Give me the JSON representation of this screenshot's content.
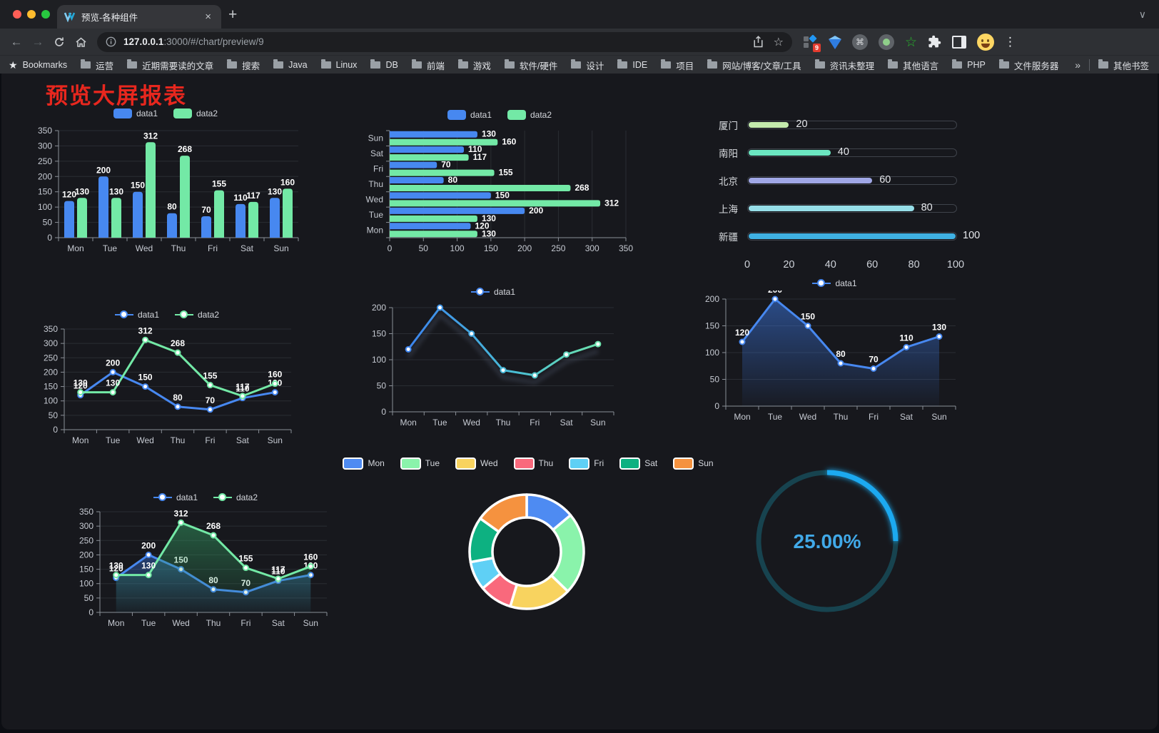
{
  "browser": {
    "tab": {
      "title": "预览-各种组件",
      "close": "×",
      "new_tab": "+"
    },
    "url": {
      "host": "127.0.0.1",
      "rest": ":3000/#/chart/preview/9"
    },
    "bookmarks_label": "Bookmarks",
    "bookmark_folders": [
      "运营",
      "近期需要读的文章",
      "搜索",
      "Java",
      "Linux",
      "DB",
      "前端",
      "游戏",
      "软件/硬件",
      "设计",
      "IDE",
      "项目",
      "网站/博客/文章/工具",
      "资讯未整理",
      "其他语言",
      "PHP",
      "文件服务器"
    ],
    "bookmarks_overflow": "»",
    "other_bookmarks": "其他书签",
    "extension_badge": "9"
  },
  "page": {
    "title": "预览大屏报表"
  },
  "charts": {
    "categories": [
      "Mon",
      "Tue",
      "Wed",
      "Thu",
      "Fri",
      "Sat",
      "Sun"
    ],
    "bar": {
      "type": "bar",
      "legend": [
        "data1",
        "data2"
      ],
      "colors": [
        "#4788f0",
        "#73e9a6"
      ],
      "series": [
        [
          120,
          200,
          150,
          80,
          70,
          110,
          130
        ],
        [
          130,
          130,
          312,
          268,
          155,
          117,
          160
        ]
      ],
      "ymax": 350,
      "ystep": 50
    },
    "hbar": {
      "type": "bar-horizontal",
      "legend": [
        "data1",
        "data2"
      ],
      "colors": [
        "#4788f0",
        "#73e9a6"
      ],
      "series": [
        [
          120,
          200,
          150,
          80,
          70,
          110,
          130
        ],
        [
          130,
          130,
          312,
          268,
          155,
          117,
          160
        ]
      ],
      "xmax": 350,
      "xstep": 50
    },
    "progress": {
      "type": "progress-bars",
      "max": 100,
      "axis_ticks": [
        0,
        20,
        40,
        60,
        80,
        100
      ],
      "rows": [
        {
          "label": "厦门",
          "value": 20,
          "color": "#c4ebad"
        },
        {
          "label": "南阳",
          "value": 40,
          "color": "#6be6c1"
        },
        {
          "label": "北京",
          "value": 60,
          "color": "#a0a7e6"
        },
        {
          "label": "上海",
          "value": 80,
          "color": "#96dee8"
        },
        {
          "label": "新疆",
          "value": 100,
          "color": "#3fb1e3"
        }
      ]
    },
    "line2": {
      "type": "line",
      "legend": [
        "data1",
        "data2"
      ],
      "colors": [
        "#4788f0",
        "#73e9a6"
      ],
      "series": [
        [
          120,
          200,
          150,
          80,
          70,
          110,
          130
        ],
        [
          130,
          130,
          312,
          268,
          155,
          117,
          160
        ]
      ],
      "ymax": 350,
      "ystep": 50
    },
    "line_grad": {
      "type": "line",
      "legend": [
        "data1"
      ],
      "gradient": [
        "#3a7bf2",
        "#49bdd4",
        "#73e9a6"
      ],
      "values": [
        120,
        200,
        150,
        80,
        70,
        110,
        130
      ],
      "ymax": 200,
      "ystep": 50
    },
    "area1": {
      "type": "area",
      "legend": [
        "data1"
      ],
      "color": "#4788f0",
      "values": [
        120,
        200,
        150,
        80,
        70,
        110,
        130
      ],
      "ymax": 200,
      "ystep": 50
    },
    "area2": {
      "type": "area",
      "legend": [
        "data1",
        "data2"
      ],
      "colors": [
        "#4788f0",
        "#73e9a6"
      ],
      "series": [
        [
          120,
          200,
          150,
          80,
          70,
          110,
          130
        ],
        [
          130,
          130,
          312,
          268,
          155,
          117,
          160
        ]
      ],
      "ymax": 350,
      "ystep": 50
    },
    "donut": {
      "type": "pie",
      "legend": [
        "Mon",
        "Tue",
        "Wed",
        "Thu",
        "Fri",
        "Sat",
        "Sun"
      ],
      "values": [
        120,
        200,
        150,
        80,
        70,
        110,
        130
      ],
      "colors": [
        "#4e8bf2",
        "#8af3ab",
        "#f8d35f",
        "#f9697c",
        "#5fd0f5",
        "#0db181",
        "#f5923f"
      ]
    },
    "gauge": {
      "type": "gauge",
      "value": 25,
      "text": "25.00%",
      "color": "#1ba9f0",
      "track": "#17434f"
    }
  }
}
